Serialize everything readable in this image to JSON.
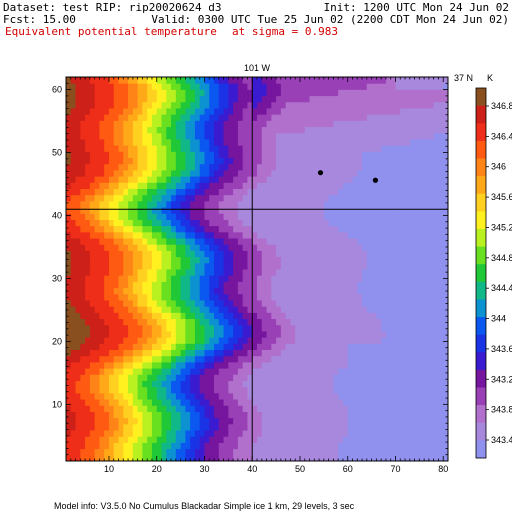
{
  "header": {
    "dataset_line": "Dataset: test  RIP: rip20020624 d3",
    "init_line": "Init: 1200 UTC Mon 24 Jun 02",
    "fcst_line": "Fcst:   15.00",
    "valid_line": "Valid: 0300 UTC Tue 25 Jun 02 (2200 CDT Mon 24 Jun 02)",
    "field_line": "Equivalent potential temperature",
    "level_line": "at sigma = 0.983"
  },
  "footer": {
    "model_info": "Model info: V3.5.0 No Cumulus Blackadar  Simple ice    1 km,  29 levels,     3 sec"
  },
  "colors": {
    "header_red": "#d40000",
    "line": "#000000"
  },
  "chart_data": {
    "type": "heatmap",
    "title": "Equivalent potential temperature",
    "subtitle": "at sigma = 0.983",
    "top_labels": [
      "101 W",
      "37 N"
    ],
    "units_label": "K",
    "xlim": [
      1,
      81
    ],
    "ylim": [
      1,
      62
    ],
    "xticks": [
      10,
      20,
      30,
      40,
      50,
      60,
      70,
      80
    ],
    "yticks": [
      10,
      20,
      30,
      40,
      50,
      60
    ],
    "grid": false,
    "reference_lines": {
      "vertical_x": 40,
      "horizontal_y": 41
    },
    "colorbar": {
      "levels": [
        343.0,
        343.2,
        343.4,
        343.6,
        343.8,
        344.0,
        344.2,
        344.4,
        344.6,
        344.8,
        345.0,
        345.2,
        345.4,
        345.6,
        345.8,
        346.0,
        346.2,
        346.4,
        346.6,
        346.8,
        347.0
      ],
      "tick_labels": [
        "343.4",
        "343.8",
        "343.2",
        "343.6",
        "344",
        "344.4",
        "344.8",
        "345.2",
        "345.6",
        "346",
        "346.4",
        "346.8"
      ],
      "colors": [
        "#9090ee",
        "#a888dd",
        "#b070cc",
        "#9a40b6",
        "#76159e",
        "#3a1bd0",
        "#1a33e5",
        "#0a58f0",
        "#0c92d0",
        "#10b888",
        "#20c838",
        "#68e020",
        "#b8f020",
        "#fff020",
        "#ffd020",
        "#ffa818",
        "#ff8418",
        "#ff5a12",
        "#ee2e18",
        "#cc2018",
        "#8a4f1e"
      ]
    },
    "dots": [
      {
        "x": 54.3,
        "y": 46.8
      },
      {
        "x": 65.8,
        "y": 45.6
      }
    ]
  }
}
